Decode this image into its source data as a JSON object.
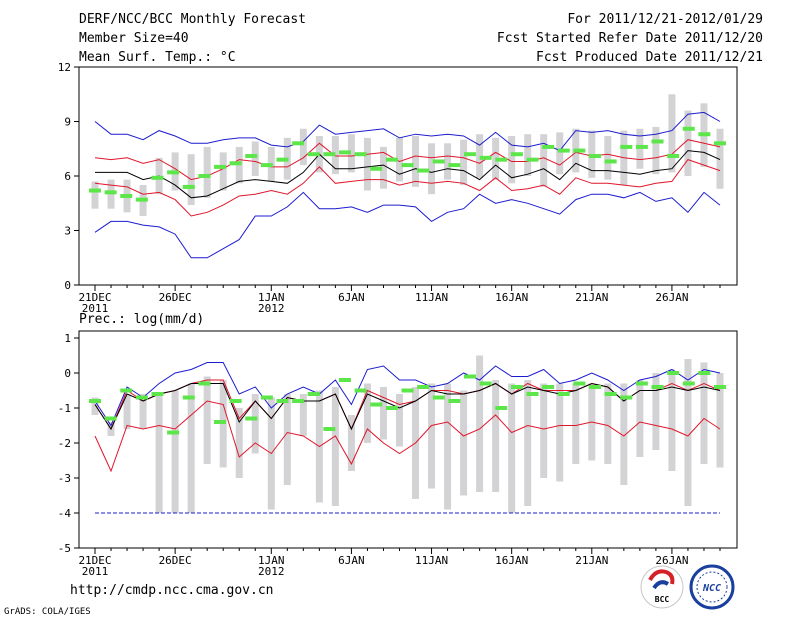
{
  "header": {
    "title": "DERF/NCC/BCC Monthly Forecast",
    "member_size": "Member Size=40",
    "variable_1": "Mean Surf. Temp.: °C",
    "period": "For 2011/12/21-2012/01/29",
    "fcst_started": "Fcst Started Refer Date 2011/12/20",
    "fcst_produced": "Fcst Produced Date 2011/12/21"
  },
  "footer": {
    "url": "http://cmdp.ncc.cma.gov.cn",
    "grads_credit": "GrADS: COLA/IGES",
    "logo_bcc_label": "BCC",
    "logo_ncc_label": "NCC"
  },
  "colors": {
    "blue_line": "#1c1ccf",
    "red_line": "#e0162b",
    "ensemble_mean": "#000000",
    "forecast_marker": "#5ce64a",
    "spread_bar": "#d3d3d6",
    "floor_line": "#1c1ccf"
  },
  "x_axis": {
    "tick_labels": [
      "21DEC",
      "26DEC",
      "1JAN",
      "6JAN",
      "11JAN",
      "16JAN",
      "21JAN",
      "26JAN"
    ],
    "tick_days": [
      0,
      5,
      11,
      16,
      21,
      26,
      31,
      36
    ],
    "year_labels": [
      {
        "day": 0,
        "text": "2011"
      },
      {
        "day": 11,
        "text": "2012"
      }
    ],
    "num_days": 40
  },
  "chart_data": [
    {
      "type": "line",
      "title": "Mean Surf. Temp.: °C",
      "ylabel": "°C",
      "ylim": [
        0,
        12
      ],
      "yticks": [
        0,
        3,
        6,
        9,
        12
      ],
      "series": [
        {
          "name": "max",
          "color": "blue",
          "values": [
            9.0,
            8.3,
            8.3,
            8.0,
            8.5,
            8.2,
            7.8,
            7.8,
            8.0,
            8.1,
            8.1,
            7.7,
            7.6,
            7.9,
            8.8,
            8.3,
            8.4,
            8.5,
            8.6,
            8.1,
            8.3,
            8.2,
            8.3,
            8.2,
            7.7,
            8.4,
            7.7,
            7.6,
            7.8,
            7.4,
            8.5,
            8.4,
            8.5,
            8.3,
            8.2,
            8.3,
            8.5,
            9.4,
            9.5,
            9.0
          ]
        },
        {
          "name": "upper",
          "color": "red",
          "values": [
            7.0,
            6.9,
            7.0,
            6.7,
            6.9,
            6.4,
            5.8,
            6.0,
            6.4,
            6.9,
            6.8,
            6.5,
            6.5,
            7.0,
            7.8,
            7.1,
            7.1,
            7.2,
            7.3,
            6.8,
            7.1,
            7.0,
            7.1,
            7.0,
            6.7,
            7.3,
            6.8,
            6.8,
            7.0,
            6.6,
            7.3,
            7.1,
            7.2,
            7.0,
            6.9,
            7.0,
            7.2,
            8.0,
            7.8,
            7.6
          ]
        },
        {
          "name": "mean",
          "color": "black",
          "values": [
            6.2,
            6.2,
            6.2,
            5.8,
            6.0,
            5.5,
            4.8,
            4.9,
            5.3,
            5.7,
            5.8,
            5.7,
            5.6,
            6.2,
            7.2,
            6.4,
            6.4,
            6.5,
            6.6,
            6.1,
            6.4,
            6.2,
            6.4,
            6.3,
            5.8,
            6.6,
            5.9,
            6.1,
            6.4,
            5.8,
            6.7,
            6.3,
            6.3,
            6.2,
            6.1,
            6.3,
            6.4,
            7.4,
            7.3,
            6.9
          ]
        },
        {
          "name": "lower",
          "color": "red",
          "values": [
            5.6,
            5.5,
            5.4,
            5.0,
            5.1,
            4.7,
            3.8,
            4.0,
            4.4,
            4.9,
            5.0,
            5.2,
            5.0,
            5.6,
            6.5,
            5.6,
            5.7,
            5.8,
            5.8,
            5.5,
            5.7,
            5.6,
            5.7,
            5.6,
            5.2,
            5.9,
            5.2,
            5.3,
            5.5,
            5.0,
            5.9,
            5.6,
            5.6,
            5.5,
            5.4,
            5.6,
            5.7,
            6.9,
            6.6,
            6.3
          ]
        },
        {
          "name": "min",
          "color": "blue",
          "values": [
            2.9,
            3.5,
            3.5,
            3.3,
            3.2,
            2.8,
            1.5,
            1.5,
            2.0,
            2.5,
            3.8,
            3.8,
            4.3,
            5.1,
            4.2,
            4.2,
            4.3,
            4.0,
            4.4,
            4.4,
            4.3,
            3.5,
            4.0,
            4.2,
            5.0,
            4.5,
            4.7,
            4.5,
            4.2,
            3.9,
            4.7,
            5.0,
            5.0,
            4.8,
            5.1,
            4.6,
            4.8,
            4.0,
            5.1,
            4.4
          ]
        }
      ],
      "forecast_markers": [
        5.2,
        5.1,
        4.9,
        4.7,
        5.9,
        6.2,
        5.4,
        6.0,
        6.5,
        6.7,
        7.1,
        6.6,
        6.9,
        7.8,
        7.2,
        7.2,
        7.3,
        7.2,
        6.4,
        6.9,
        6.6,
        6.3,
        6.8,
        6.6,
        7.2,
        7.0,
        6.9,
        7.2,
        6.9,
        7.6,
        7.4,
        7.4,
        7.1,
        6.8,
        7.6,
        7.6,
        7.9,
        7.1,
        8.6,
        8.3,
        7.8
      ],
      "bars": [
        {
          "low": 4.2,
          "high": 5.7
        },
        {
          "low": 4.2,
          "high": 5.8
        },
        {
          "low": 4.0,
          "high": 5.8
        },
        {
          "low": 3.8,
          "high": 5.5
        },
        {
          "low": 5.0,
          "high": 7.0
        },
        {
          "low": 5.2,
          "high": 7.3
        },
        {
          "low": 4.4,
          "high": 7.2
        },
        {
          "low": 4.8,
          "high": 7.6
        },
        {
          "low": 5.2,
          "high": 7.3
        },
        {
          "low": 5.6,
          "high": 7.6
        },
        {
          "low": 6.0,
          "high": 7.9
        },
        {
          "low": 5.7,
          "high": 7.6
        },
        {
          "low": 5.8,
          "high": 8.1
        },
        {
          "low": 6.6,
          "high": 8.6
        },
        {
          "low": 6.2,
          "high": 8.2
        },
        {
          "low": 6.1,
          "high": 8.2
        },
        {
          "low": 6.2,
          "high": 8.3
        },
        {
          "low": 5.2,
          "high": 8.1
        },
        {
          "low": 5.3,
          "high": 7.6
        },
        {
          "low": 5.7,
          "high": 8.1
        },
        {
          "low": 5.4,
          "high": 8.2
        },
        {
          "low": 5.0,
          "high": 7.8
        },
        {
          "low": 5.8,
          "high": 7.8
        },
        {
          "low": 5.5,
          "high": 8.0
        },
        {
          "low": 5.9,
          "high": 8.3
        },
        {
          "low": 5.8,
          "high": 8.1
        },
        {
          "low": 5.6,
          "high": 8.2
        },
        {
          "low": 6.0,
          "high": 8.3
        },
        {
          "low": 5.4,
          "high": 8.3
        },
        {
          "low": 6.1,
          "high": 8.4
        },
        {
          "low": 6.2,
          "high": 8.6
        },
        {
          "low": 5.9,
          "high": 8.5
        },
        {
          "low": 5.8,
          "high": 8.2
        },
        {
          "low": 5.5,
          "high": 8.5
        },
        {
          "low": 6.4,
          "high": 8.6
        },
        {
          "low": 6.1,
          "high": 8.7
        },
        {
          "low": 6.2,
          "high": 10.5
        },
        {
          "low": 6.0,
          "high": 9.6
        },
        {
          "low": 6.5,
          "high": 10.0
        },
        {
          "low": 5.3,
          "high": 8.6
        }
      ]
    },
    {
      "type": "line",
      "title": "Prec.: log(mm/d)",
      "ylabel": "log(mm/d)",
      "ylim": [
        -5,
        1.2
      ],
      "yticks": [
        -5,
        -4,
        -3,
        -2,
        -1,
        0,
        1
      ],
      "floor_line": -4,
      "series": [
        {
          "name": "max",
          "color": "blue",
          "values": [
            -0.8,
            -1.5,
            -0.4,
            -0.7,
            -0.3,
            0.0,
            0.1,
            0.3,
            0.3,
            -0.6,
            -0.4,
            -1.0,
            -0.6,
            -0.4,
            -0.6,
            -0.2,
            -0.9,
            0.1,
            0.2,
            -0.2,
            -0.2,
            -0.4,
            -0.3,
            0.0,
            -0.2,
            0.2,
            -0.1,
            -0.1,
            0.1,
            -0.3,
            -0.2,
            0.0,
            -0.2,
            -0.5,
            -0.2,
            -0.1,
            0.1,
            -0.2,
            0.1,
            0.0
          ]
        },
        {
          "name": "upper",
          "color": "red",
          "values": [
            -0.9,
            -1.6,
            -0.5,
            -0.8,
            -0.6,
            -0.5,
            -0.3,
            -0.2,
            -0.2,
            -1.3,
            -0.8,
            -1.3,
            -0.7,
            -0.8,
            -0.8,
            -0.6,
            -1.6,
            -0.5,
            -0.7,
            -0.9,
            -0.8,
            -0.5,
            -0.5,
            -0.6,
            -0.5,
            -0.3,
            -0.6,
            -0.3,
            -0.5,
            -0.5,
            -0.5,
            -0.3,
            -0.4,
            -0.8,
            -0.5,
            -0.5,
            -0.3,
            -0.5,
            -0.3,
            -0.5
          ]
        },
        {
          "name": "mean",
          "color": "black",
          "values": [
            -0.9,
            -1.6,
            -0.6,
            -0.8,
            -0.6,
            -0.5,
            -0.3,
            -0.3,
            -0.3,
            -1.4,
            -0.8,
            -1.3,
            -0.7,
            -0.8,
            -0.8,
            -0.6,
            -1.6,
            -0.6,
            -0.8,
            -1.0,
            -0.8,
            -0.5,
            -0.6,
            -0.6,
            -0.5,
            -0.3,
            -0.6,
            -0.4,
            -0.5,
            -0.6,
            -0.5,
            -0.3,
            -0.4,
            -0.8,
            -0.5,
            -0.5,
            -0.4,
            -0.5,
            -0.4,
            -0.5
          ]
        },
        {
          "name": "lower",
          "color": "red",
          "values": [
            -1.8,
            -2.8,
            -1.5,
            -1.6,
            -1.5,
            -1.6,
            -1.2,
            -0.8,
            -0.9,
            -2.4,
            -2.0,
            -2.3,
            -1.7,
            -1.8,
            -2.1,
            -1.8,
            -2.6,
            -1.6,
            -2.0,
            -2.3,
            -2.0,
            -1.5,
            -1.4,
            -1.8,
            -1.6,
            -1.2,
            -1.7,
            -1.5,
            -1.6,
            -1.5,
            -1.5,
            -1.4,
            -1.5,
            -1.8,
            -1.4,
            -1.5,
            -1.6,
            -1.8,
            -1.3,
            -1.6
          ]
        }
      ],
      "forecast_markers": [
        -0.8,
        -1.3,
        -0.5,
        -0.7,
        -0.6,
        -1.7,
        -0.7,
        -0.3,
        -1.4,
        -0.8,
        -1.3,
        -0.7,
        -0.8,
        -0.8,
        -0.6,
        -1.6,
        -0.2,
        -0.5,
        -0.9,
        -1.0,
        -0.5,
        -0.4,
        -0.7,
        -0.8,
        -0.1,
        -0.3,
        -1.0,
        -0.4,
        -0.6,
        -0.4,
        -0.6,
        -0.3,
        -0.4,
        -0.6,
        -0.7,
        -0.3,
        -0.4,
        0.0,
        -0.3,
        0.0,
        -0.4
      ],
      "bars": [
        {
          "low": -1.2,
          "high": -0.7
        },
        {
          "low": -1.8,
          "high": -1.4
        },
        {
          "low": -1.6,
          "high": -0.6
        },
        {
          "low": -1.6,
          "high": -0.6
        },
        {
          "low": -4.0,
          "high": -0.6
        },
        {
          "low": -4.0,
          "high": -0.5
        },
        {
          "low": -4.0,
          "high": -0.3
        },
        {
          "low": -2.6,
          "high": -0.1
        },
        {
          "low": -2.7,
          "high": -0.2
        },
        {
          "low": -3.0,
          "high": -1.0
        },
        {
          "low": -2.3,
          "high": -0.6
        },
        {
          "low": -3.9,
          "high": -0.7
        },
        {
          "low": -3.2,
          "high": -0.6
        },
        {
          "low": -1.8,
          "high": -0.6
        },
        {
          "low": -3.7,
          "high": -0.5
        },
        {
          "low": -3.8,
          "high": -0.4
        },
        {
          "low": -2.8,
          "high": -1.2
        },
        {
          "low": -2.0,
          "high": -0.3
        },
        {
          "low": -1.9,
          "high": -0.4
        },
        {
          "low": -2.1,
          "high": -0.6
        },
        {
          "low": -3.6,
          "high": -0.4
        },
        {
          "low": -3.3,
          "high": -0.3
        },
        {
          "low": -3.9,
          "high": -0.3
        },
        {
          "low": -3.5,
          "high": -0.5
        },
        {
          "low": -3.4,
          "high": 0.5
        },
        {
          "low": -3.4,
          "high": -0.2
        },
        {
          "low": -4.0,
          "high": -0.3
        },
        {
          "low": -3.8,
          "high": -0.2
        },
        {
          "low": -3.0,
          "high": -0.3
        },
        {
          "low": -3.1,
          "high": -0.3
        },
        {
          "low": -2.6,
          "high": -0.3
        },
        {
          "low": -2.5,
          "high": -0.3
        },
        {
          "low": -2.6,
          "high": -0.3
        },
        {
          "low": -3.2,
          "high": -0.3
        },
        {
          "low": -2.4,
          "high": -0.2
        },
        {
          "low": -2.2,
          "high": 0.0
        },
        {
          "low": -2.8,
          "high": 0.1
        },
        {
          "low": -3.8,
          "high": 0.4
        },
        {
          "low": -2.6,
          "high": 0.3
        },
        {
          "low": -2.7,
          "high": 0.0
        }
      ]
    }
  ]
}
